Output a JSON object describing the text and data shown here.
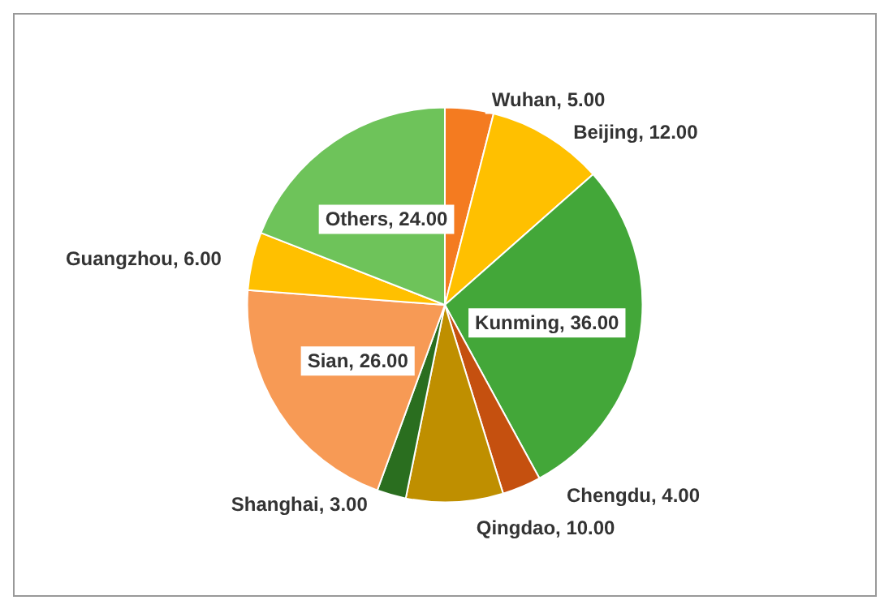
{
  "chart_data": {
    "type": "pie",
    "categories": [
      "Wuhan",
      "Beijing",
      "Kunming",
      "Chengdu",
      "Qingdao",
      "Shanghai",
      "Sian",
      "Guangzhou",
      "Others"
    ],
    "values": [
      5,
      12,
      36,
      4,
      10,
      3,
      26,
      6,
      24
    ],
    "value_labels": [
      ", 5.00",
      ", 12.00",
      ", 36.00",
      ", 4.00",
      ", 10.00",
      ", 3.00",
      ", 26.00",
      ", 6.00",
      ", 24.00"
    ],
    "colors": [
      "#f47b20",
      "#ffc000",
      "#43a739",
      "#c5500f",
      "#bf8f00",
      "#2a6e1f",
      "#f79a55",
      "#ffc000",
      "#6ec35a"
    ],
    "legend": false
  }
}
